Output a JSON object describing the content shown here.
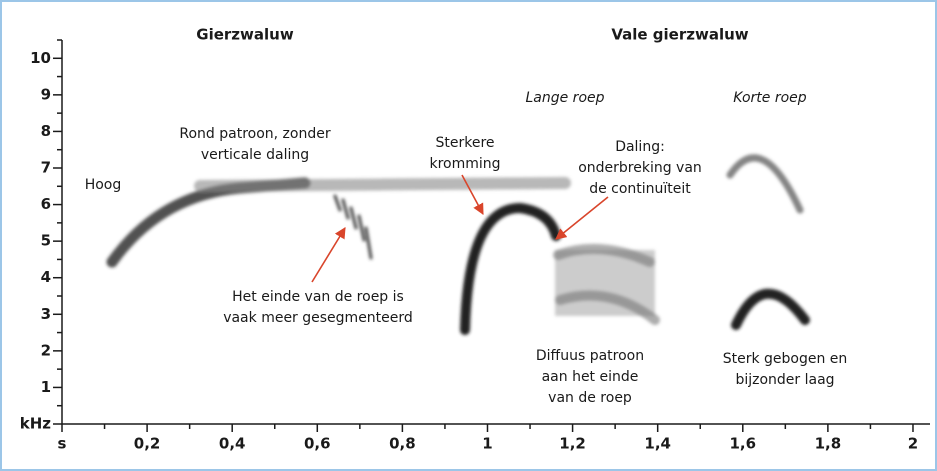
{
  "chart_data": {
    "type": "spectrogram",
    "panels": [
      "Gierzwaluw",
      "Vale gierzwaluw"
    ],
    "call_types": [
      "Lange roep",
      "Korte roep"
    ],
    "annotations": [
      [
        "Hoog"
      ],
      [
        "Rond patroon, zonder",
        "verticale daling"
      ],
      [
        "Het einde van de roep is",
        "vaak meer gesegmenteerd"
      ],
      [
        "Sterkere",
        "kromming"
      ],
      [
        "Daling:",
        "onderbreking van",
        "de continuïteit"
      ],
      [
        "Diffuus patroon",
        "aan het einde",
        "van de roep"
      ],
      [
        "Sterk gebogen en",
        "bijzonder laag"
      ]
    ],
    "xlim": [
      0,
      2.04
    ],
    "ylim": [
      0,
      10.5
    ],
    "xticks": [
      {
        "value": 0,
        "label": "s"
      },
      {
        "value": 0.2,
        "label": "0,2"
      },
      {
        "value": 0.4,
        "label": "0,4"
      },
      {
        "value": 0.6,
        "label": "0,6"
      },
      {
        "value": 0.8,
        "label": "0,8"
      },
      1,
      {
        "value": 1.2,
        "label": "1,2"
      },
      {
        "value": 1.4,
        "label": "1,4"
      },
      {
        "value": 1.6,
        "label": "1,6"
      },
      {
        "value": 1.8,
        "label": "1,8"
      },
      2
    ],
    "xminorticks": [
      0.1,
      0.3,
      0.5,
      0.7,
      0.9,
      1.1,
      1.3,
      1.5,
      1.7,
      1.9
    ],
    "yticks": [
      {
        "value": 0,
        "label": "kHz"
      },
      1,
      2,
      3,
      4,
      5,
      6,
      7,
      8,
      9,
      10
    ],
    "yminorticks": [
      0.5,
      1.5,
      2.5,
      3.5,
      4.5,
      5.5,
      6.5,
      7.5,
      8.5,
      9.5,
      10.5
    ]
  }
}
